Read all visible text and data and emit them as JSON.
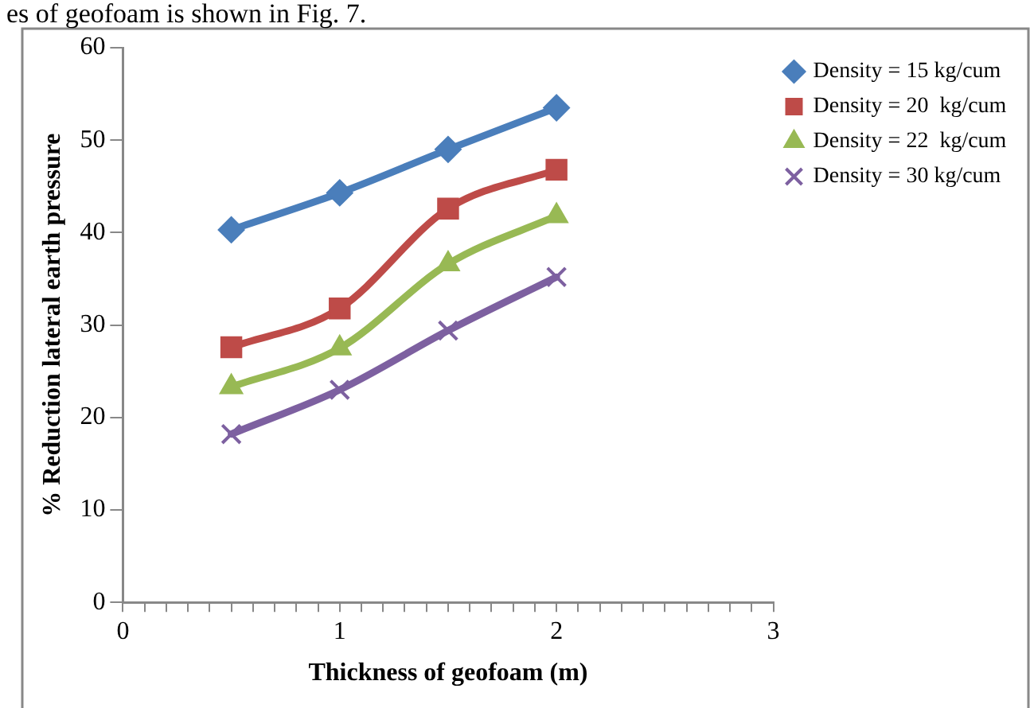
{
  "chart_data": {
    "type": "line",
    "xlabel": "Thickness of geofoam (m)",
    "ylabel": "% Reduction lateral earth pressure",
    "annotations": [
      "es of geofoam is shown in Fig. 7."
    ],
    "x": [
      0.5,
      1,
      1.5,
      2
    ],
    "series": [
      {
        "name": "Density = 15 kg/cum",
        "color": "#4a7ebb",
        "marker": "diamond",
        "values": [
          40.3,
          44.3,
          49.0,
          53.5
        ]
      },
      {
        "name": "Density = 20  kg/cum",
        "color": "#be4b48",
        "marker": "square",
        "values": [
          27.6,
          31.8,
          42.6,
          46.8
        ]
      },
      {
        "name": "Density = 22  kg/cum",
        "color": "#98b954",
        "marker": "triangle",
        "values": [
          23.3,
          27.5,
          36.6,
          41.8
        ]
      },
      {
        "name": "Density = 30 kg/cum",
        "color": "#7d60a0",
        "marker": "cross",
        "values": [
          18.2,
          23.0,
          29.4,
          35.2
        ]
      }
    ],
    "xlim": [
      0,
      3
    ],
    "xticks": [
      0,
      {
        "value": 0.1,
        "label": null
      },
      {
        "value": 0.2,
        "label": null
      },
      {
        "value": 0.3,
        "label": null
      },
      {
        "value": 0.4,
        "label": null
      },
      {
        "value": 0.5,
        "label": null
      },
      {
        "value": 0.6,
        "label": null
      },
      {
        "value": 0.7,
        "label": null
      },
      {
        "value": 0.8,
        "label": null
      },
      {
        "value": 0.9,
        "label": null
      },
      1,
      {
        "value": 1.1,
        "label": null
      },
      {
        "value": 1.2,
        "label": null
      },
      {
        "value": 1.3,
        "label": null
      },
      {
        "value": 1.4,
        "label": null
      },
      {
        "value": 1.5,
        "label": null
      },
      {
        "value": 1.6,
        "label": null
      },
      {
        "value": 1.7,
        "label": null
      },
      {
        "value": 1.8,
        "label": null
      },
      {
        "value": 1.9,
        "label": null
      },
      2,
      {
        "value": 2.1,
        "label": null
      },
      {
        "value": 2.2,
        "label": null
      },
      {
        "value": 2.3,
        "label": null
      },
      {
        "value": 2.4,
        "label": null
      },
      {
        "value": 2.5,
        "label": null
      },
      {
        "value": 2.6,
        "label": null
      },
      {
        "value": 2.7,
        "label": null
      },
      {
        "value": 2.8,
        "label": null
      },
      {
        "value": 2.9,
        "label": null
      },
      3
    ],
    "ylim": [
      0,
      60
    ],
    "yticks": [
      0,
      10,
      20,
      30,
      40,
      50,
      60
    ],
    "grid": false,
    "legend": "top right",
    "line_style": "solid"
  }
}
